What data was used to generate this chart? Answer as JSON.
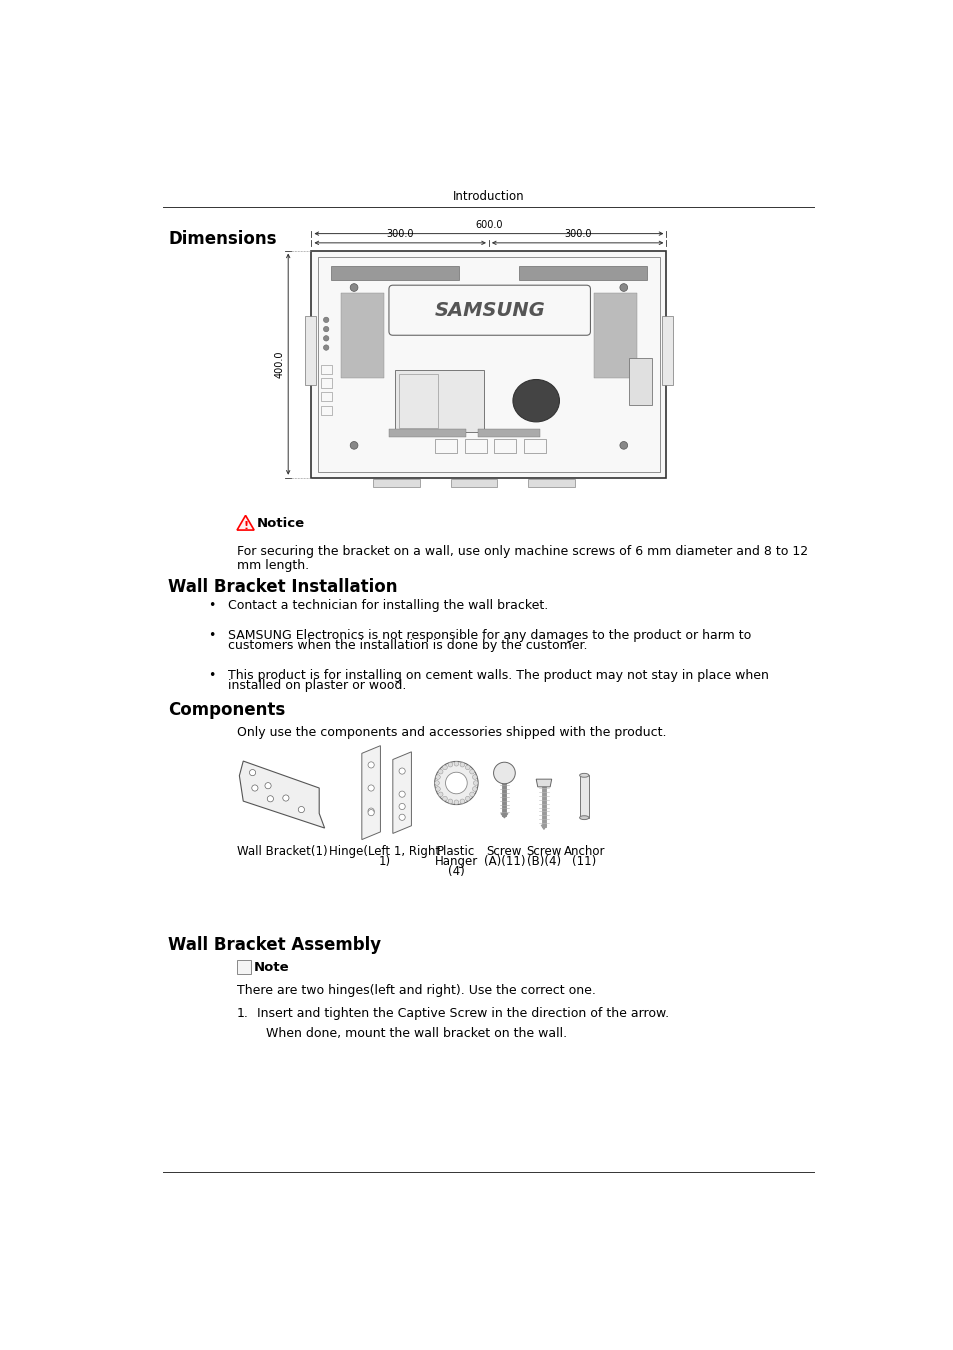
{
  "page_title": "Introduction",
  "section1_title": "Dimensions",
  "notice_title": "Notice",
  "notice_text1": "For securing the bracket on a wall, use only machine screws of 6 mm diameter and 8 to 12",
  "notice_text2": "mm length.",
  "section2_title": "Wall Bracket Installation",
  "bullet1": "Contact a technician for installing the wall bracket.",
  "bullet2a": "SAMSUNG Electronics is not responsible for any damages to the product or harm to",
  "bullet2b": "customers when the installation is done by the customer.",
  "bullet3a": "This product is for installing on cement walls. The product may not stay in place when",
  "bullet3b": "installed on plaster or wood.",
  "section3_title": "Components",
  "components_intro": "Only use the components and accessories shipped with the product.",
  "comp_label1": "Wall Bracket(1)",
  "comp_label2a": "Hinge(Left 1, Right",
  "comp_label2b": "1)",
  "comp_label3a": "Plastic",
  "comp_label3b": "Hanger",
  "comp_label3c": "(4)",
  "comp_label4a": "Screw",
  "comp_label4b": "(A)(11)",
  "comp_label5a": "Screw",
  "comp_label5b": "(B)(4)",
  "comp_label6a": "Anchor",
  "comp_label6b": "(11)",
  "section4_title": "Wall Bracket Assembly",
  "note_title": "Note",
  "assembly_text1": "There are two hinges(left and right). Use the correct one.",
  "assembly_step1a": "1.",
  "assembly_step1b": "Insert and tighten the Captive Screw in the direction of the arrow.",
  "assembly_step1c": "When done, mount the wall bracket on the wall.",
  "dim_600": "600.0",
  "dim_300_left": "300.0",
  "dim_300_right": "300.0",
  "dim_400": "400.0",
  "bg_color": "#ffffff",
  "text_color": "#000000",
  "header_line_color": "#333333",
  "diagram_color": "#444444",
  "notice_tri_color": "#ff0000",
  "notice_tri_fill": "#fff0f0"
}
